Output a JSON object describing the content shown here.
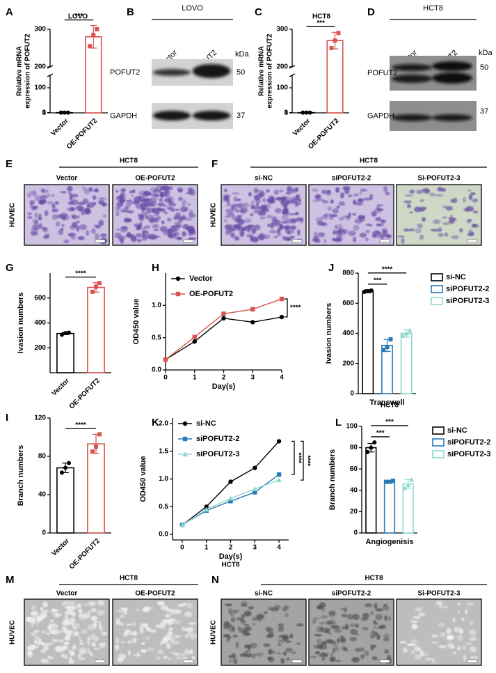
{
  "chart_data": [
    {
      "type": "bar",
      "panel": "A",
      "title": "LOVO",
      "ylabel": [
        "Relative mRNA",
        "expression of POFUT2"
      ],
      "categories": [
        "Vector",
        "OE-POFUT2"
      ],
      "colors": [
        "#000000",
        "#d9534f"
      ],
      "markers": [
        "circle",
        "square"
      ],
      "values": [
        1,
        280
      ],
      "errors": [
        0.05,
        30
      ],
      "points": [
        [
          0.95,
          1.02,
          1.03
        ],
        [
          255,
          285,
          300
        ]
      ],
      "ylim": [
        0,
        300
      ],
      "yticks": [
        0,
        1,
        100,
        200,
        300
      ],
      "axis_break": true,
      "significance": [
        "***"
      ]
    },
    {
      "type": "bar",
      "panel": "C",
      "title": "HCT8",
      "ylabel": [
        "Relative mRNA",
        "expression of POFUT2"
      ],
      "categories": [
        "Vector",
        "OE-POFUT2"
      ],
      "colors": [
        "#000000",
        "#d9534f"
      ],
      "markers": [
        "circle",
        "square"
      ],
      "values": [
        1,
        270
      ],
      "errors": [
        0.12,
        22
      ],
      "points": [
        [
          0.88,
          1.05,
          1.07
        ],
        [
          250,
          270,
          290
        ]
      ],
      "ylim": [
        0,
        300
      ],
      "yticks": [
        0,
        1,
        100,
        200,
        300
      ],
      "axis_break": true,
      "significance": [
        "***"
      ]
    },
    {
      "type": "bar",
      "panel": "G",
      "ylabel": "Ivasion numbers",
      "categories": [
        "Vector",
        "OE-POFUT2"
      ],
      "colors": [
        "#000000",
        "#d9534f"
      ],
      "markers": [
        "circle",
        "square"
      ],
      "values": [
        315,
        685
      ],
      "errors": [
        8,
        38
      ],
      "points": [
        [
          305,
          318,
          322
        ],
        [
          650,
          690,
          720
        ]
      ],
      "ylim": [
        0,
        800
      ],
      "yticks": [
        200,
        400,
        600
      ],
      "significance": [
        "****"
      ]
    },
    {
      "type": "line",
      "panel": "H",
      "ylabel": "OD450 value",
      "xlabel": "Day(s)",
      "x": [
        0,
        1,
        2,
        3,
        4
      ],
      "xlim": [
        0,
        4
      ],
      "xticks": [
        0,
        1,
        2,
        3,
        4
      ],
      "ylim": [
        0,
        1.5
      ],
      "yticks": [
        {
          "value": 0,
          "label": "0.0"
        },
        0.5,
        {
          "value": 1,
          "label": "1.0"
        }
      ],
      "series": [
        {
          "name": "Vector",
          "color": "#000000",
          "marker": "circle",
          "values": [
            0.16,
            0.44,
            0.8,
            0.74,
            0.82
          ]
        },
        {
          "name": "OE-POFUT2",
          "color": "#d9534f",
          "marker": "square",
          "values": [
            0.16,
            0.51,
            0.87,
            0.94,
            1.1
          ]
        }
      ],
      "legend": "upper left",
      "significance": [
        "****"
      ]
    },
    {
      "type": "bar",
      "panel": "J",
      "ylabel": "Ivasion numbers",
      "xlabel": "Transwell",
      "categories": [
        "si-NC",
        "siPOFUT2-2",
        "siPOFUT2-3"
      ],
      "colors": [
        "#000000",
        "#2a7ab8",
        "#8fd9cf"
      ],
      "markers": [
        "circle",
        "square",
        "triangle"
      ],
      "values": [
        680,
        320,
        400
      ],
      "errors": [
        10,
        40,
        25
      ],
      "points": [
        [
          675,
          680,
          685
        ],
        [
          290,
          310,
          360
        ],
        [
          385,
          400,
          420
        ]
      ],
      "ylim": [
        0,
        800
      ],
      "yticks": [
        0,
        200,
        400,
        600,
        800
      ],
      "legend": "right",
      "significance": [
        "****",
        "***"
      ]
    },
    {
      "type": "bar",
      "panel": "I",
      "ylabel": "Branch numbers",
      "categories": [
        "Vector",
        "OE-POFUT2"
      ],
      "colors": [
        "#000000",
        "#d9534f"
      ],
      "markers": [
        "circle",
        "square"
      ],
      "values": [
        68,
        93
      ],
      "errors": [
        5,
        10
      ],
      "points": [
        [
          63,
          68,
          73
        ],
        [
          85,
          90,
          103
        ]
      ],
      "ylim": [
        0,
        120
      ],
      "yticks": [
        0,
        40,
        80,
        120
      ],
      "significance": [
        "****"
      ]
    },
    {
      "type": "line",
      "panel": "K",
      "ylabel": "OD450 value",
      "xlabel": "Day(s)",
      "caption": "HCT8",
      "x": [
        0,
        1,
        2,
        3,
        4
      ],
      "xlim": [
        -0.4,
        4.4
      ],
      "xticks": [
        0,
        1,
        2,
        3,
        4
      ],
      "ylim": [
        -0.1,
        2.1
      ],
      "yticks": [
        {
          "value": 0,
          "label": "0.0"
        },
        0.5,
        {
          "value": 1,
          "label": "1.0"
        },
        1.5,
        {
          "value": 2,
          "label": "2.0"
        }
      ],
      "series": [
        {
          "name": "si-NC",
          "color": "#000000",
          "marker": "circle",
          "values": [
            0.17,
            0.5,
            0.95,
            1.2,
            1.68
          ]
        },
        {
          "name": "siPOFUT2-2",
          "color": "#2a7ab8",
          "marker": "square",
          "values": [
            0.17,
            0.43,
            0.6,
            0.76,
            1.08
          ]
        },
        {
          "name": "siPOFUT2-3",
          "color": "#8fd9cf",
          "marker": "triangle",
          "values": [
            0.17,
            0.45,
            0.65,
            0.82,
            0.98
          ]
        }
      ],
      "legend": "upper left",
      "significance": [
        "****",
        "****"
      ]
    },
    {
      "type": "bar",
      "panel": "L",
      "title": "HCT8",
      "ylabel": "Branch numbers",
      "xlabel": "Angiogenisis",
      "categories": [
        "si-NC",
        "siPOFUT2-2",
        "siPOFUT2-3"
      ],
      "colors": [
        "#000000",
        "#2a7ab8",
        "#8fd9cf"
      ],
      "markers": [
        "circle",
        "square",
        "triangle"
      ],
      "values": [
        80,
        48,
        46
      ],
      "errors": [
        4,
        1,
        4
      ],
      "points": [
        [
          76,
          80,
          85
        ],
        [
          48,
          48,
          49
        ],
        [
          42,
          45,
          50
        ]
      ],
      "ylim": [
        0,
        100
      ],
      "yticks": [
        0,
        20,
        40,
        60,
        80,
        100
      ],
      "legend": "right",
      "significance": [
        "***",
        "***"
      ]
    }
  ],
  "blots": [
    {
      "panel": "B",
      "title": "LOVO",
      "lanes": [
        "Vector",
        "OE-POFUT2"
      ],
      "unit": "kDa",
      "rows": [
        {
          "label": "POFUT2",
          "size": 50
        },
        {
          "label": "GAPDH",
          "size": 37
        }
      ]
    },
    {
      "panel": "D",
      "title": "HCT8",
      "lanes": [
        "Vector",
        "OE-POFUT2"
      ],
      "unit": "kDa",
      "rows": [
        {
          "label": "POFUT2",
          "size": 50
        },
        {
          "label": "GAPDH",
          "size": 37
        }
      ]
    }
  ],
  "micrographs": [
    {
      "panel": "E",
      "title": "HCT8",
      "row_label": "HUVEC",
      "columns": [
        "Vector",
        "OE-POFUT2"
      ]
    },
    {
      "panel": "F",
      "title": "HCT8",
      "row_label": "HUVEC",
      "columns": [
        "si-NC",
        "siPOFUT2-2",
        "Si-POFUT2-3"
      ]
    },
    {
      "panel": "M",
      "title": "HCT8",
      "row_label": "HUVEC",
      "columns": [
        "Vector",
        "OE-POFUT2"
      ]
    },
    {
      "panel": "N",
      "title": "HCT8",
      "row_label": "HUVEC",
      "columns": [
        "si-NC",
        "siPOFUT2-2",
        "Si-POFUT2-3"
      ]
    }
  ]
}
